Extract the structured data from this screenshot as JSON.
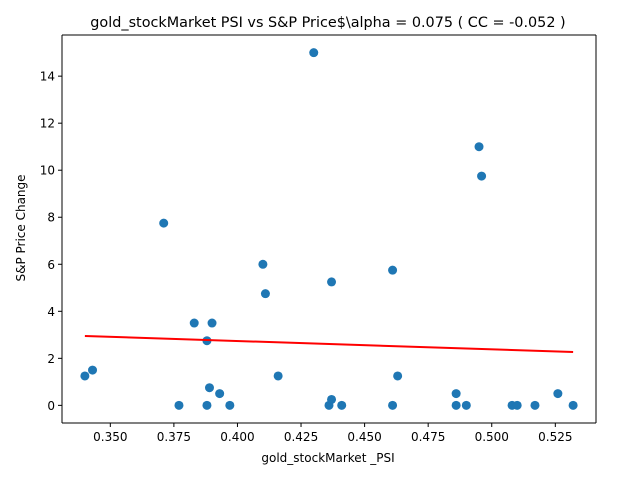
{
  "chart_data": {
    "type": "scatter",
    "title": "gold_stockMarket  PSI vs S&P Price$\\alpha = 0.075 ( CC = -0.052 )",
    "xlabel": "gold_stockMarket _PSI",
    "ylabel": "S&P Price Change",
    "xlim": [
      0.331,
      0.541
    ],
    "ylim": [
      -0.75,
      15.75
    ],
    "xticks": [
      0.35,
      0.375,
      0.4,
      0.425,
      0.45,
      0.475,
      0.5,
      0.525
    ],
    "xtick_labels": [
      "0.350",
      "0.375",
      "0.400",
      "0.425",
      "0.450",
      "0.475",
      "0.500",
      "0.525"
    ],
    "yticks": [
      0,
      2,
      4,
      6,
      8,
      10,
      12,
      14
    ],
    "ytick_labels": [
      "0",
      "2",
      "4",
      "6",
      "8",
      "10",
      "12",
      "14"
    ],
    "grid": false,
    "colors": {
      "points": "#1f77b4",
      "fit_line": "#ff0000"
    },
    "points": [
      {
        "x": 0.34,
        "y": 1.25
      },
      {
        "x": 0.343,
        "y": 1.5
      },
      {
        "x": 0.371,
        "y": 7.75
      },
      {
        "x": 0.377,
        "y": 0.0
      },
      {
        "x": 0.383,
        "y": 3.5
      },
      {
        "x": 0.388,
        "y": 0.0
      },
      {
        "x": 0.388,
        "y": 2.75
      },
      {
        "x": 0.389,
        "y": 0.75
      },
      {
        "x": 0.39,
        "y": 3.5
      },
      {
        "x": 0.393,
        "y": 0.5
      },
      {
        "x": 0.397,
        "y": 0.0
      },
      {
        "x": 0.41,
        "y": 6.0
      },
      {
        "x": 0.411,
        "y": 4.75
      },
      {
        "x": 0.416,
        "y": 1.25
      },
      {
        "x": 0.43,
        "y": 15.0
      },
      {
        "x": 0.436,
        "y": 0.0
      },
      {
        "x": 0.437,
        "y": 0.25
      },
      {
        "x": 0.437,
        "y": 5.25
      },
      {
        "x": 0.441,
        "y": 0.0
      },
      {
        "x": 0.461,
        "y": 0.0
      },
      {
        "x": 0.461,
        "y": 5.75
      },
      {
        "x": 0.463,
        "y": 1.25
      },
      {
        "x": 0.486,
        "y": 0.5
      },
      {
        "x": 0.486,
        "y": 0.0
      },
      {
        "x": 0.49,
        "y": 0.0
      },
      {
        "x": 0.495,
        "y": 11.0
      },
      {
        "x": 0.496,
        "y": 9.75
      },
      {
        "x": 0.508,
        "y": 0.0
      },
      {
        "x": 0.51,
        "y": 0.0
      },
      {
        "x": 0.517,
        "y": 0.0
      },
      {
        "x": 0.526,
        "y": 0.5
      },
      {
        "x": 0.532,
        "y": 0.0
      }
    ],
    "fit_line": {
      "x": [
        0.34,
        0.532
      ],
      "y": [
        2.95,
        2.27
      ]
    }
  }
}
